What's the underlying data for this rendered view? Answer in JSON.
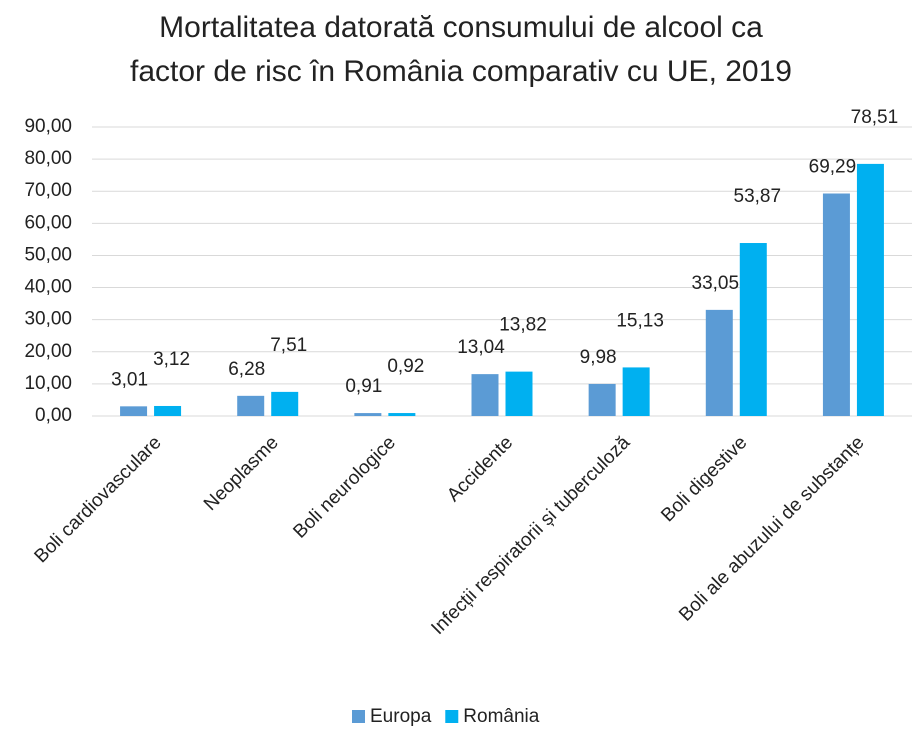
{
  "chart_data": {
    "type": "bar",
    "title": "Mortalitatea datorată consumului de alcool ca\nfactor de risc în România comparativ cu UE, 2019",
    "categories": [
      "Boli cardiovasculare",
      "Neoplasme",
      "Boli neurologice",
      "Accidente",
      "Infecții respiratorii și tuberculoză",
      "Boli digestive",
      "Boli ale abuzului de substanțe"
    ],
    "series": [
      {
        "name": "Europa",
        "color": "#5b9bd5",
        "values": [
          3.01,
          6.28,
          0.91,
          13.04,
          9.98,
          33.05,
          69.29
        ],
        "value_labels": [
          "3,01",
          "6,28",
          "0,91",
          "13,04",
          "9,98",
          "33,05",
          "69,29"
        ]
      },
      {
        "name": "România",
        "color": "#00b0f0",
        "values": [
          3.12,
          7.51,
          0.92,
          13.82,
          15.13,
          53.87,
          78.51
        ],
        "value_labels": [
          "3,12",
          "7,51",
          "0,92",
          "13,82",
          "15,13",
          "53,87",
          "78,51"
        ]
      }
    ],
    "ylim": [
      0,
      90
    ],
    "yticks": [
      {
        "value": 0,
        "label": "0,00"
      },
      {
        "value": 10,
        "label": "10,00"
      },
      {
        "value": 20,
        "label": "20,00"
      },
      {
        "value": 30,
        "label": "30,00"
      },
      {
        "value": 40,
        "label": "40,00"
      },
      {
        "value": 50,
        "label": "50,00"
      },
      {
        "value": 60,
        "label": "60,00"
      },
      {
        "value": 70,
        "label": "70,00"
      },
      {
        "value": 80,
        "label": "80,00"
      },
      {
        "value": 90,
        "label": "90,00"
      }
    ],
    "grid": true,
    "legend": "bottom"
  }
}
